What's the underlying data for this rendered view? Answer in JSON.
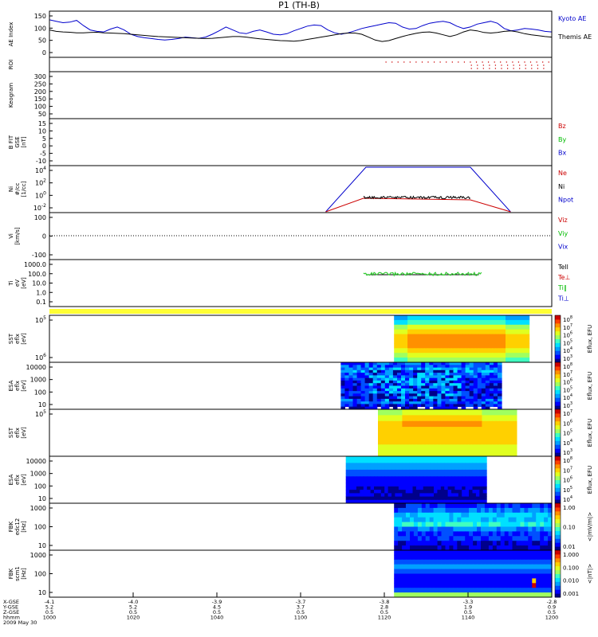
{
  "chart_data": {
    "type": "multi-panel-time-series",
    "title": "P1 (TH-B)",
    "panels": [
      {
        "id": "ae",
        "ylabel": [
          "AE Index"
        ],
        "yticks": [
          "150",
          "100",
          "50",
          "0"
        ],
        "legend": [
          {
            "label": "Kyoto AE",
            "color": "#0000cc"
          },
          {
            "label": "Themis AE",
            "color": "#000000"
          }
        ],
        "series": [
          {
            "name": "Kyoto AE",
            "values": [
              130,
              125,
              120,
              122,
              128,
              110,
              95,
              90,
              88,
              98,
              105,
              95,
              80,
              72,
              68,
              65,
              62,
              60,
              62,
              65,
              70,
              68,
              66,
              70,
              80,
              92,
              105,
              95,
              85,
              82,
              90,
              95,
              88,
              80,
              78,
              82,
              92,
              100,
              108,
              112,
              110,
              95,
              85,
              80,
              85,
              92,
              100,
              105,
              110,
              115,
              120,
              118,
              105,
              98,
              100,
              110,
              118,
              122,
              125,
              120,
              108,
              100,
              105,
              115,
              120,
              125,
              118,
              100,
              92,
              95,
              100,
              98,
              95,
              90,
              88
            ]
          },
          {
            "name": "Themis AE",
            "values": [
              95,
              90,
              88,
              87,
              85,
              85,
              86,
              87,
              85,
              84,
              83,
              82,
              80,
              78,
              76,
              74,
              72,
              71,
              70,
              69,
              68,
              67,
              66,
              65,
              66,
              68,
              70,
              72,
              72,
              70,
              67,
              64,
              62,
              60,
              58,
              57,
              56,
              58,
              62,
              66,
              70,
              74,
              78,
              82,
              84,
              84,
              80,
              70,
              60,
              55,
              58,
              65,
              72,
              78,
              83,
              87,
              88,
              84,
              78,
              72,
              78,
              88,
              95,
              92,
              86,
              84,
              86,
              90,
              92,
              88,
              82,
              78,
              75,
              72,
              70
            ]
          }
        ]
      },
      {
        "id": "roi",
        "ylabel": [
          "ROI"
        ],
        "yticks": []
      },
      {
        "id": "keogram",
        "ylabel": [
          "Keogram"
        ],
        "yticks": [
          "300",
          "250",
          "200",
          "150",
          "100",
          "50"
        ]
      },
      {
        "id": "bfgm",
        "ylabel": [
          "B FIT",
          "GSE",
          "[nT]"
        ],
        "yticks": [
          "15",
          "10",
          "5",
          "0",
          "-5",
          "-10"
        ],
        "legend": [
          {
            "label": "Bz",
            "color": "#cc0000"
          },
          {
            "label": "By",
            "color": "#00bb00"
          },
          {
            "label": "Bx",
            "color": "#0000cc"
          }
        ]
      },
      {
        "id": "ni",
        "ylabel": [
          "Ni",
          "#/cc",
          "[1/cc]"
        ],
        "yticks": [
          "10^4",
          "10^2",
          "10^0",
          "10^-2"
        ],
        "legend": [
          {
            "label": "Ne",
            "color": "#cc0000"
          },
          {
            "label": "Ni",
            "color": "#000000"
          },
          {
            "label": "Npot",
            "color": "#0000cc"
          }
        ]
      },
      {
        "id": "vi",
        "ylabel": [
          "Vi",
          "[km/s]"
        ],
        "yticks": [
          "100",
          "0",
          "-100"
        ],
        "legend": [
          {
            "label": "Viz",
            "color": "#cc0000"
          },
          {
            "label": "Viy",
            "color": "#00bb00"
          },
          {
            "label": "Vix",
            "color": "#0000cc"
          }
        ]
      },
      {
        "id": "ti",
        "ylabel": [
          "Ti",
          "eV",
          "[eV]"
        ],
        "yticks": [
          "1000.0",
          "100.0",
          "10.0",
          "1.0",
          "0.1"
        ],
        "legend": [
          {
            "label": "Tell",
            "color": "#000000"
          },
          {
            "label": "Te⊥",
            "color": "#cc0000"
          },
          {
            "label": "Ti‖",
            "color": "#00bb00"
          },
          {
            "label": "Ti⊥",
            "color": "#0000cc"
          }
        ]
      },
      {
        "id": "sst1",
        "ylabel": [
          "SST",
          "eflx",
          "[eV]"
        ],
        "yticks": [
          "10^5",
          "10^6"
        ],
        "colorbar": {
          "label": "Eflux, EFU",
          "ticks": [
            "10^8",
            "10^7",
            "10^6",
            "10^5",
            "10^4",
            "10^3"
          ]
        }
      },
      {
        "id": "esa1",
        "ylabel": [
          "ESA",
          "eflx",
          "[eV]"
        ],
        "yticks": [
          "10000",
          "1000",
          "100",
          "10"
        ],
        "colorbar": {
          "label": "Eflux, EFU",
          "ticks": [
            "10^8",
            "10^7",
            "10^6",
            "10^5",
            "10^4",
            "10^3"
          ]
        }
      },
      {
        "id": "sst2",
        "ylabel": [
          "SST",
          "eflx",
          "[eV]"
        ],
        "yticks": [
          "10^5"
        ],
        "colorbar": {
          "label": "Eflux, EFU",
          "ticks": [
            "10^7",
            "10^6",
            "10^5",
            "10^4",
            "10^3"
          ]
        }
      },
      {
        "id": "esa2",
        "ylabel": [
          "ESA",
          "eflx",
          "[eV]"
        ],
        "yticks": [
          "10000",
          "1000",
          "100",
          "10"
        ],
        "colorbar": {
          "label": "Eflux, EFU",
          "ticks": [
            "10^8",
            "10^7",
            "10^6",
            "10^5",
            "10^4"
          ]
        }
      },
      {
        "id": "fbk1",
        "ylabel": [
          "FBK",
          "edc12",
          "[Hz]"
        ],
        "yticks": [
          "1000",
          "100",
          "10"
        ],
        "colorbar": {
          "label": "<|mV/m|>",
          "ticks": [
            "1.00",
            "0.10",
            "0.01"
          ]
        }
      },
      {
        "id": "fbk2",
        "ylabel": [
          "FBK",
          "scm1",
          "[Hz]"
        ],
        "yticks": [
          "1000",
          "100",
          "10"
        ],
        "colorbar": {
          "label": "<|nT|>",
          "ticks": [
            "1.000",
            "0.100",
            "0.010",
            "0.001"
          ]
        }
      }
    ],
    "x_axis": {
      "row_labels": [
        "X-GSE",
        "Y-GSE",
        "Z-GSE",
        "hhmm",
        "2009 May 30"
      ],
      "ticks": [
        {
          "x_gse": "-4.1",
          "y_gse": "5.2",
          "z_gse": "0.5",
          "hhmm": "1000"
        },
        {
          "x_gse": "-4.0",
          "y_gse": "5.2",
          "z_gse": "0.5",
          "hhmm": "1020"
        },
        {
          "x_gse": "-3.9",
          "y_gse": "4.5",
          "z_gse": "0.5",
          "hhmm": "1040"
        },
        {
          "x_gse": "-3.7",
          "y_gse": "3.7",
          "z_gse": "0.5",
          "hhmm": "1100"
        },
        {
          "x_gse": "-3.8",
          "y_gse": "2.8",
          "z_gse": "0.5",
          "hhmm": "1120"
        },
        {
          "x_gse": "-3.3",
          "y_gse": "1.9",
          "z_gse": "0.5",
          "hhmm": "1140"
        },
        {
          "x_gse": "-2.8",
          "y_gse": "0.9",
          "z_gse": "0.5",
          "hhmm": "1200"
        }
      ]
    }
  }
}
